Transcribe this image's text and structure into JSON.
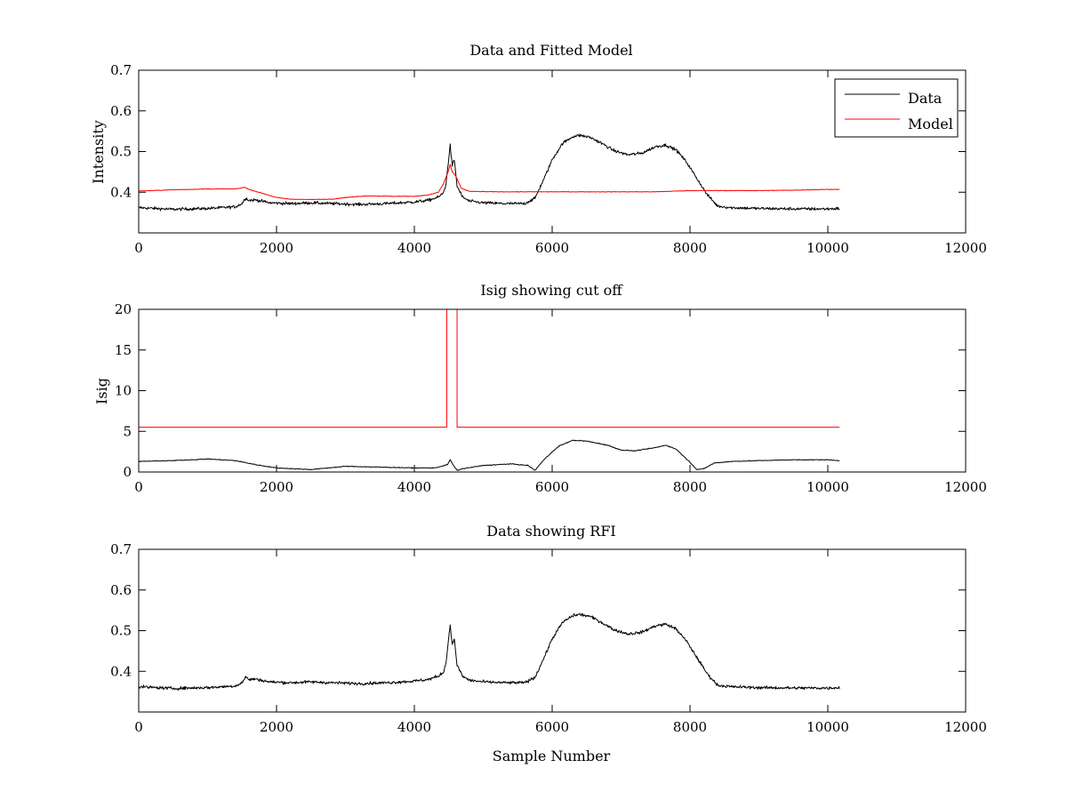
{
  "figure": {
    "background": "#ffffff"
  },
  "chart_data": [
    {
      "type": "line",
      "title": "Data and Fitted Model",
      "xlabel": "",
      "ylabel": "Intensity",
      "xlim": [
        0,
        12000
      ],
      "ylim": [
        0.3,
        0.7
      ],
      "xticks": [
        0,
        2000,
        4000,
        6000,
        8000,
        10000,
        12000
      ],
      "yticks": [
        0.4,
        0.5,
        0.6,
        0.7
      ],
      "legend": "top-right",
      "series": [
        {
          "name": "Data",
          "color": "#000000",
          "noise": 0.004,
          "points": [
            [
              0,
              0.362
            ],
            [
              500,
              0.358
            ],
            [
              1000,
              0.36
            ],
            [
              1400,
              0.364
            ],
            [
              1500,
              0.372
            ],
            [
              1550,
              0.386
            ],
            [
              1600,
              0.38
            ],
            [
              1700,
              0.381
            ],
            [
              1900,
              0.374
            ],
            [
              2200,
              0.372
            ],
            [
              2500,
              0.374
            ],
            [
              2800,
              0.372
            ],
            [
              3200,
              0.37
            ],
            [
              3600,
              0.372
            ],
            [
              4000,
              0.376
            ],
            [
              4200,
              0.38
            ],
            [
              4350,
              0.388
            ],
            [
              4420,
              0.398
            ],
            [
              4460,
              0.42
            ],
            [
              4490,
              0.47
            ],
            [
              4520,
              0.515
            ],
            [
              4550,
              0.465
            ],
            [
              4580,
              0.48
            ],
            [
              4620,
              0.415
            ],
            [
              4700,
              0.388
            ],
            [
              4800,
              0.378
            ],
            [
              5000,
              0.374
            ],
            [
              5300,
              0.372
            ],
            [
              5600,
              0.372
            ],
            [
              5750,
              0.385
            ],
            [
              5900,
              0.44
            ],
            [
              6000,
              0.48
            ],
            [
              6150,
              0.52
            ],
            [
              6300,
              0.537
            ],
            [
              6400,
              0.54
            ],
            [
              6550,
              0.535
            ],
            [
              6700,
              0.522
            ],
            [
              6900,
              0.502
            ],
            [
              7100,
              0.492
            ],
            [
              7300,
              0.496
            ],
            [
              7500,
              0.512
            ],
            [
              7650,
              0.516
            ],
            [
              7800,
              0.504
            ],
            [
              7950,
              0.474
            ],
            [
              8100,
              0.434
            ],
            [
              8250,
              0.394
            ],
            [
              8400,
              0.366
            ],
            [
              8600,
              0.362
            ],
            [
              9000,
              0.36
            ],
            [
              9500,
              0.359
            ],
            [
              10000,
              0.359
            ],
            [
              10170,
              0.36
            ]
          ]
        },
        {
          "name": "Model",
          "color": "#ff0000",
          "noise": 0.0008,
          "points": [
            [
              0,
              0.403
            ],
            [
              200,
              0.404
            ],
            [
              500,
              0.406
            ],
            [
              1000,
              0.408
            ],
            [
              1400,
              0.408
            ],
            [
              1540,
              0.412
            ],
            [
              1600,
              0.407
            ],
            [
              1800,
              0.397
            ],
            [
              2000,
              0.387
            ],
            [
              2200,
              0.383
            ],
            [
              2500,
              0.382
            ],
            [
              2800,
              0.383
            ],
            [
              3000,
              0.387
            ],
            [
              3300,
              0.391
            ],
            [
              3700,
              0.39
            ],
            [
              4000,
              0.39
            ],
            [
              4200,
              0.393
            ],
            [
              4350,
              0.4
            ],
            [
              4420,
              0.42
            ],
            [
              4490,
              0.45
            ],
            [
              4520,
              0.468
            ],
            [
              4550,
              0.45
            ],
            [
              4600,
              0.44
            ],
            [
              4680,
              0.41
            ],
            [
              4800,
              0.402
            ],
            [
              5200,
              0.401
            ],
            [
              6000,
              0.401
            ],
            [
              7000,
              0.401
            ],
            [
              7500,
              0.401
            ],
            [
              8000,
              0.404
            ],
            [
              8500,
              0.404
            ],
            [
              9000,
              0.404
            ],
            [
              9500,
              0.405
            ],
            [
              10000,
              0.407
            ],
            [
              10170,
              0.407
            ]
          ]
        }
      ]
    },
    {
      "type": "line",
      "title": "Isig showing cut off",
      "xlabel": "",
      "ylabel": "Isig",
      "xlim": [
        0,
        12000
      ],
      "ylim": [
        0,
        20
      ],
      "xticks": [
        0,
        2000,
        4000,
        6000,
        8000,
        10000,
        12000
      ],
      "yticks": [
        0,
        5,
        10,
        15,
        20
      ],
      "series": [
        {
          "color": "#ff0000",
          "noise": 0,
          "points": [
            [
              0,
              5.5
            ],
            [
              4470,
              5.5
            ],
            [
              4470,
              20
            ],
            [
              4620,
              20
            ],
            [
              4620,
              5.5
            ],
            [
              10170,
              5.5
            ]
          ]
        },
        {
          "color": "#000000",
          "noise": 0.05,
          "points": [
            [
              0,
              1.3
            ],
            [
              500,
              1.4
            ],
            [
              1000,
              1.6
            ],
            [
              1400,
              1.4
            ],
            [
              1700,
              0.9
            ],
            [
              2000,
              0.5
            ],
            [
              2500,
              0.3
            ],
            [
              3000,
              0.7
            ],
            [
              3500,
              0.6
            ],
            [
              4000,
              0.5
            ],
            [
              4300,
              0.5
            ],
            [
              4480,
              0.9
            ],
            [
              4520,
              1.5
            ],
            [
              4560,
              0.9
            ],
            [
              4620,
              0.2
            ],
            [
              4700,
              0.4
            ],
            [
              5000,
              0.8
            ],
            [
              5400,
              1.0
            ],
            [
              5650,
              0.8
            ],
            [
              5750,
              0.2
            ],
            [
              5900,
              1.7
            ],
            [
              6100,
              3.2
            ],
            [
              6300,
              3.9
            ],
            [
              6500,
              3.8
            ],
            [
              6800,
              3.3
            ],
            [
              7000,
              2.7
            ],
            [
              7200,
              2.6
            ],
            [
              7500,
              3.0
            ],
            [
              7650,
              3.3
            ],
            [
              7800,
              2.8
            ],
            [
              8000,
              1.2
            ],
            [
              8100,
              0.3
            ],
            [
              8200,
              0.4
            ],
            [
              8350,
              1.1
            ],
            [
              8600,
              1.3
            ],
            [
              9000,
              1.4
            ],
            [
              9500,
              1.5
            ],
            [
              10000,
              1.5
            ],
            [
              10170,
              1.4
            ]
          ]
        }
      ]
    },
    {
      "type": "line",
      "title": "Data showing RFI",
      "xlabel": "Sample Number",
      "ylabel": "",
      "xlim": [
        0,
        12000
      ],
      "ylim": [
        0.3,
        0.7
      ],
      "xticks": [
        0,
        2000,
        4000,
        6000,
        8000,
        10000,
        12000
      ],
      "yticks": [
        0.4,
        0.5,
        0.6,
        0.7
      ],
      "series": [
        {
          "color": "#000000",
          "noise": 0.004,
          "points": [
            [
              0,
              0.362
            ],
            [
              500,
              0.358
            ],
            [
              1000,
              0.36
            ],
            [
              1400,
              0.364
            ],
            [
              1500,
              0.372
            ],
            [
              1550,
              0.386
            ],
            [
              1600,
              0.38
            ],
            [
              1700,
              0.381
            ],
            [
              1900,
              0.374
            ],
            [
              2200,
              0.372
            ],
            [
              2500,
              0.374
            ],
            [
              2800,
              0.372
            ],
            [
              3200,
              0.37
            ],
            [
              3600,
              0.372
            ],
            [
              4000,
              0.376
            ],
            [
              4200,
              0.38
            ],
            [
              4350,
              0.388
            ],
            [
              4420,
              0.398
            ],
            [
              4460,
              0.42
            ],
            [
              4490,
              0.47
            ],
            [
              4520,
              0.515
            ],
            [
              4550,
              0.465
            ],
            [
              4580,
              0.48
            ],
            [
              4620,
              0.415
            ],
            [
              4700,
              0.388
            ],
            [
              4800,
              0.378
            ],
            [
              5000,
              0.374
            ],
            [
              5300,
              0.372
            ],
            [
              5600,
              0.372
            ],
            [
              5750,
              0.385
            ],
            [
              5900,
              0.44
            ],
            [
              6000,
              0.48
            ],
            [
              6150,
              0.52
            ],
            [
              6300,
              0.537
            ],
            [
              6400,
              0.54
            ],
            [
              6550,
              0.535
            ],
            [
              6700,
              0.522
            ],
            [
              6900,
              0.502
            ],
            [
              7100,
              0.492
            ],
            [
              7300,
              0.496
            ],
            [
              7500,
              0.512
            ],
            [
              7650,
              0.516
            ],
            [
              7800,
              0.504
            ],
            [
              7950,
              0.474
            ],
            [
              8100,
              0.434
            ],
            [
              8250,
              0.394
            ],
            [
              8400,
              0.366
            ],
            [
              8600,
              0.362
            ],
            [
              9000,
              0.36
            ],
            [
              9500,
              0.359
            ],
            [
              10000,
              0.359
            ],
            [
              10170,
              0.36
            ]
          ]
        }
      ]
    }
  ]
}
